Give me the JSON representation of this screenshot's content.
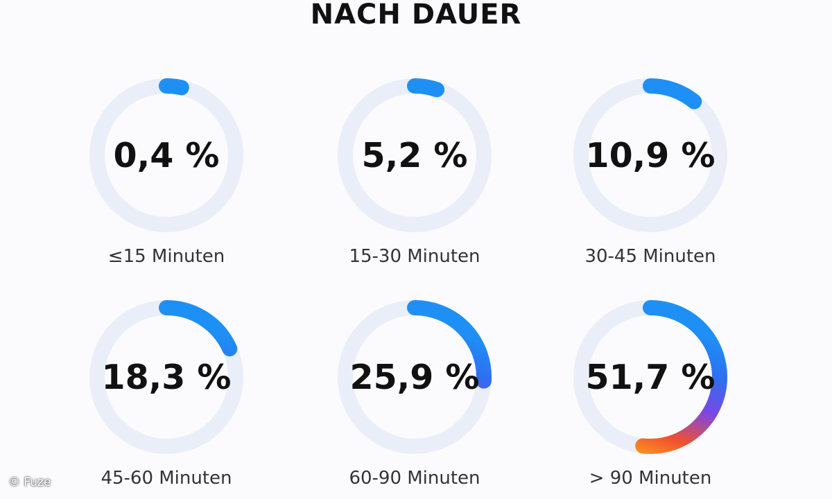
{
  "header": {
    "title": "NACH DAUER"
  },
  "chart_data": {
    "type": "donut",
    "title": "NACH DAUER",
    "categories": [
      "≤15 Minuten",
      "15-30 Minuten",
      "30-45 Minuten",
      "45-60 Minuten",
      "60-90 Minuten",
      "> 90 Minuten"
    ],
    "values": [
      0.4,
      5.2,
      10.9,
      18.3,
      25.9,
      51.7
    ],
    "value_labels": [
      "0,4 %",
      "5,2 %",
      "10,9 %",
      "18,3 %",
      "25,9 %",
      "51,7 %"
    ],
    "unit": "%",
    "max": 100,
    "track_color": "#e9eef9",
    "gradient_colors": [
      "#ffb21c",
      "#f2512e",
      "#7c46e4",
      "#2e6ff0",
      "#1e90f5"
    ]
  },
  "footer": {
    "copyright": "© Fuze"
  }
}
